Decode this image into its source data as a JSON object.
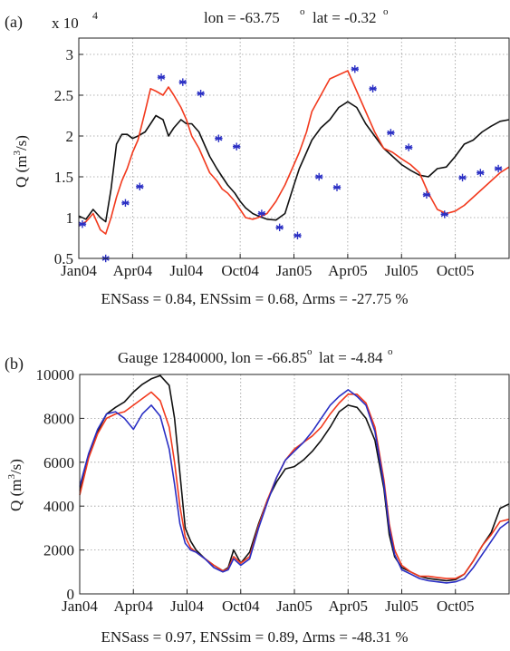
{
  "chart_data": [
    {
      "type": "line",
      "panel_label": "(a)",
      "title_prefix": "lon = -63.75",
      "title_lat": "lat = -0.32",
      "degree_sign": "o",
      "exponent_base": "x 10",
      "exponent_power": "4",
      "ylabel_prefix": "Q (m",
      "ylabel_exp": "3",
      "ylabel_suffix": "/s)",
      "ylim": [
        0.5,
        3.2
      ],
      "yticks": [
        "0.5",
        "1",
        "1.5",
        "2",
        "2.5",
        "3"
      ],
      "ytick_values": [
        0.5,
        1,
        1.5,
        2,
        2.5,
        3
      ],
      "xlim": [
        0,
        24
      ],
      "xticks": [
        "Jan04",
        "Apr04",
        "Jul04",
        "Oct04",
        "Jan05",
        "Apr05",
        "Jul05",
        "Oct05"
      ],
      "xtick_values": [
        0,
        3,
        6,
        9,
        12,
        15,
        18,
        21
      ],
      "grid": true,
      "metrics_text": "ENSass = 0.84, ENSsim = 0.68, Δrms = -27.75 %",
      "series": [
        {
          "color": "#111111",
          "style": "line",
          "x": [
            0,
            0.4,
            0.8,
            1.2,
            1.5,
            1.8,
            2.1,
            2.4,
            2.7,
            3.0,
            3.3,
            3.7,
            4.0,
            4.3,
            4.7,
            5.0,
            5.3,
            5.7,
            6.0,
            6.3,
            6.7,
            7.0,
            7.3,
            7.7,
            8.0,
            8.3,
            8.7,
            9.0,
            9.3,
            9.7,
            10.0,
            10.5,
            11.0,
            11.5,
            12.0,
            12.3,
            12.7,
            13.0,
            13.5,
            14.0,
            14.5,
            15.0,
            15.5,
            16.0,
            16.5,
            17.0,
            17.5,
            18.0,
            18.5,
            19.0,
            19.5,
            20.0,
            20.5,
            21.0,
            21.5,
            22.0,
            22.5,
            23.0,
            23.5,
            24.0
          ],
          "y": [
            1.02,
            0.98,
            1.1,
            1.0,
            0.95,
            1.35,
            1.9,
            2.02,
            2.02,
            1.97,
            2.0,
            2.05,
            2.15,
            2.25,
            2.2,
            2.0,
            2.1,
            2.2,
            2.15,
            2.15,
            2.05,
            1.9,
            1.75,
            1.6,
            1.5,
            1.4,
            1.3,
            1.2,
            1.12,
            1.05,
            1.02,
            0.98,
            0.97,
            1.05,
            1.4,
            1.6,
            1.8,
            1.95,
            2.1,
            2.2,
            2.35,
            2.42,
            2.35,
            2.15,
            2.0,
            1.85,
            1.75,
            1.65,
            1.58,
            1.52,
            1.5,
            1.6,
            1.62,
            1.75,
            1.9,
            1.95,
            2.05,
            2.12,
            2.18,
            2.2
          ]
        },
        {
          "color": "#f23a1e",
          "style": "line",
          "x": [
            0,
            0.4,
            0.8,
            1.2,
            1.5,
            1.8,
            2.1,
            2.4,
            2.7,
            3.0,
            3.3,
            3.7,
            4.0,
            4.3,
            4.7,
            5.0,
            5.3,
            5.7,
            6.0,
            6.3,
            6.7,
            7.0,
            7.3,
            7.7,
            8.0,
            8.3,
            8.7,
            9.0,
            9.3,
            9.7,
            10.0,
            10.5,
            11.0,
            11.5,
            12.0,
            12.3,
            12.7,
            13.0,
            13.5,
            14.0,
            14.5,
            15.0,
            15.5,
            16.0,
            16.5,
            17.0,
            17.5,
            18.0,
            18.5,
            19.0,
            19.5,
            20.0,
            20.5,
            21.0,
            21.5,
            22.0,
            22.5,
            23.0,
            23.5,
            24.0
          ],
          "y": [
            0.9,
            0.95,
            1.05,
            0.85,
            0.8,
            1.0,
            1.25,
            1.45,
            1.6,
            1.8,
            1.95,
            2.3,
            2.58,
            2.55,
            2.5,
            2.6,
            2.5,
            2.35,
            2.2,
            2.0,
            1.85,
            1.7,
            1.55,
            1.45,
            1.35,
            1.3,
            1.2,
            1.1,
            1.0,
            0.98,
            1.0,
            1.05,
            1.2,
            1.4,
            1.65,
            1.8,
            2.05,
            2.3,
            2.5,
            2.7,
            2.75,
            2.8,
            2.55,
            2.3,
            2.05,
            1.85,
            1.8,
            1.72,
            1.65,
            1.55,
            1.3,
            1.1,
            1.05,
            1.08,
            1.15,
            1.25,
            1.35,
            1.45,
            1.55,
            1.62
          ]
        },
        {
          "color": "#2a2fc4",
          "style": "markers",
          "x": [
            0.2,
            1.5,
            2.6,
            3.4,
            4.6,
            5.8,
            6.8,
            7.8,
            8.8,
            10.2,
            11.2,
            12.2,
            13.4,
            14.4,
            15.4,
            16.4,
            17.4,
            18.4,
            19.4,
            20.4,
            21.4,
            22.4,
            23.4
          ],
          "y": [
            0.92,
            0.5,
            1.18,
            1.38,
            2.72,
            2.66,
            2.52,
            1.97,
            1.87,
            1.05,
            0.88,
            0.78,
            1.5,
            1.37,
            2.82,
            2.58,
            2.04,
            1.86,
            1.28,
            1.04,
            1.49,
            1.55,
            1.6
          ]
        }
      ]
    },
    {
      "type": "line",
      "panel_label": "(b)",
      "title_prefix": "Gauge 12840000, lon = -66.85",
      "title_lat": "lat = -4.84",
      "degree_sign": "o",
      "ylabel_prefix": "Q (m",
      "ylabel_exp": "3",
      "ylabel_suffix": "/s)",
      "ylim": [
        0,
        10000
      ],
      "yticks": [
        "0",
        "2000",
        "4000",
        "6000",
        "8000",
        "10000"
      ],
      "ytick_values": [
        0,
        2000,
        4000,
        6000,
        8000,
        10000
      ],
      "xlim": [
        0,
        24
      ],
      "xticks": [
        "Jan04",
        "Apr04",
        "Jul04",
        "Oct04",
        "Jan05",
        "Apr05",
        "Jul05",
        "Oct05"
      ],
      "xtick_values": [
        0,
        3,
        6,
        9,
        12,
        15,
        18,
        21
      ],
      "grid": true,
      "metrics_text": "ENSass = 0.97, ENSsim = 0.89, Δrms = -48.31 %",
      "series": [
        {
          "color": "#111111",
          "style": "line",
          "x": [
            0,
            0.5,
            1.0,
            1.5,
            2.0,
            2.5,
            3.0,
            3.5,
            4.0,
            4.5,
            5.0,
            5.3,
            5.6,
            5.9,
            6.2,
            6.5,
            7.0,
            7.5,
            8.0,
            8.3,
            8.6,
            9.0,
            9.5,
            10.0,
            10.5,
            11.0,
            11.5,
            12.0,
            12.5,
            13.0,
            13.5,
            14.0,
            14.5,
            15.0,
            15.5,
            16.0,
            16.5,
            17.0,
            17.3,
            17.6,
            18.0,
            18.5,
            19.0,
            19.5,
            20.0,
            20.5,
            21.0,
            21.5,
            22.0,
            22.5,
            23.0,
            23.5,
            24.0
          ],
          "y": [
            4700,
            6300,
            7400,
            8200,
            8500,
            8750,
            9200,
            9550,
            9800,
            9950,
            9500,
            8000,
            5500,
            3000,
            2400,
            2000,
            1600,
            1300,
            1050,
            1200,
            2000,
            1400,
            1900,
            3200,
            4300,
            5100,
            5700,
            5800,
            6100,
            6500,
            7000,
            7600,
            8300,
            8600,
            8500,
            8000,
            7000,
            4800,
            2700,
            1700,
            1200,
            1000,
            800,
            700,
            650,
            600,
            650,
            900,
            1500,
            2200,
            2800,
            3900,
            4100
          ]
        },
        {
          "color": "#f23a1e",
          "style": "line",
          "x": [
            0,
            0.5,
            1.0,
            1.5,
            2.0,
            2.5,
            3.0,
            3.5,
            4.0,
            4.5,
            5.0,
            5.3,
            5.6,
            5.9,
            6.2,
            6.5,
            7.0,
            7.5,
            8.0,
            8.3,
            8.6,
            9.0,
            9.5,
            10.0,
            10.5,
            11.0,
            11.5,
            12.0,
            12.5,
            13.0,
            13.5,
            14.0,
            14.5,
            15.0,
            15.5,
            16.0,
            16.5,
            17.0,
            17.3,
            17.6,
            18.0,
            18.5,
            19.0,
            19.5,
            20.0,
            20.5,
            21.0,
            21.5,
            22.0,
            22.5,
            23.0,
            23.5,
            24.0
          ],
          "y": [
            4500,
            6200,
            7300,
            8000,
            8200,
            8300,
            8600,
            8900,
            9200,
            8800,
            7600,
            6000,
            4000,
            2600,
            2100,
            1900,
            1600,
            1300,
            1050,
            1150,
            1700,
            1400,
            1700,
            3100,
            4300,
            5300,
            6100,
            6600,
            6900,
            7200,
            7600,
            8200,
            8700,
            9100,
            9100,
            8700,
            7600,
            5200,
            3200,
            2000,
            1300,
            1000,
            800,
            800,
            750,
            700,
            700,
            900,
            1500,
            2200,
            2700,
            3300,
            3400
          ]
        },
        {
          "color": "#2a2fc4",
          "style": "line",
          "x": [
            0,
            0.5,
            1.0,
            1.5,
            2.0,
            2.5,
            3.0,
            3.5,
            4.0,
            4.5,
            5.0,
            5.3,
            5.6,
            5.9,
            6.2,
            6.5,
            7.0,
            7.5,
            8.0,
            8.3,
            8.6,
            9.0,
            9.5,
            10.0,
            10.5,
            11.0,
            11.5,
            12.0,
            12.5,
            13.0,
            13.5,
            14.0,
            14.5,
            15.0,
            15.5,
            16.0,
            16.5,
            17.0,
            17.3,
            17.6,
            18.0,
            18.5,
            19.0,
            19.5,
            20.0,
            20.5,
            21.0,
            21.5,
            22.0,
            22.5,
            23.0,
            23.5,
            24.0
          ],
          "y": [
            4900,
            6400,
            7500,
            8200,
            8300,
            8000,
            7500,
            8200,
            8600,
            8100,
            6600,
            5000,
            3200,
            2300,
            2000,
            1900,
            1600,
            1200,
            1000,
            1100,
            1600,
            1300,
            1600,
            3000,
            4200,
            5300,
            6100,
            6500,
            6900,
            7400,
            8000,
            8600,
            9000,
            9300,
            9000,
            8600,
            7400,
            5000,
            3000,
            1800,
            1100,
            900,
            700,
            600,
            550,
            500,
            550,
            700,
            1200,
            1800,
            2400,
            3000,
            3300
          ]
        }
      ]
    }
  ]
}
